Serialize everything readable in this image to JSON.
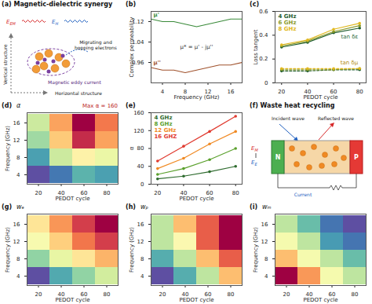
{
  "chart_data": [
    {
      "type": "diagram",
      "title": "(a) Magnetic-dielectric synergy",
      "fields": [
        {
          "base": "E",
          "sub": "EM"
        },
        {
          "base": "E",
          "sub": "H"
        }
      ],
      "texts": [
        "Migrating and hopping electrons",
        "Magnetic eddy current",
        "Vertical structure",
        "Horizontal structure"
      ]
    },
    {
      "type": "line",
      "title": "(b)",
      "xlabel": "Frequency (GHz)",
      "ylabel": "Complex permeability",
      "x": [
        2,
        4,
        6,
        8,
        10,
        12,
        14,
        16,
        18
      ],
      "xlim": [
        2,
        18
      ],
      "xticks": [
        4,
        8,
        12,
        16
      ],
      "ylim": [
        0.88,
        1.16
      ],
      "yticks": [
        0.96,
        1.04,
        1.12
      ],
      "series": [
        {
          "name": "μ'",
          "color": "#3a8a3a",
          "values": [
            1.13,
            1.12,
            1.12,
            1.11,
            1.1,
            1.11,
            1.12,
            1.13,
            1.13
          ]
        },
        {
          "name": "μ''",
          "color": "#a0522d",
          "values": [
            0.94,
            0.93,
            0.93,
            0.92,
            0.93,
            0.94,
            0.95,
            0.95,
            0.96
          ]
        }
      ],
      "annotations": [
        "μ* = μ' - jμ''"
      ]
    },
    {
      "type": "line",
      "title": "(c)",
      "xlabel": "PEDOT cycle",
      "ylabel": "Loss tangent",
      "x": [
        20,
        40,
        60,
        80
      ],
      "xlim": [
        15,
        85
      ],
      "xticks": [
        20,
        40,
        60,
        80
      ],
      "ylim": [
        0,
        0.6
      ],
      "yticks": [
        0,
        0.2,
        0.4,
        0.6
      ],
      "legend": "top-left",
      "marker": "circle",
      "series": [
        {
          "name": "4 GHz",
          "color": "#1f5c2e",
          "values": [
            0.3,
            0.34,
            0.42,
            0.46
          ],
          "values_mu": [
            0.1,
            0.1,
            0.11,
            0.11
          ]
        },
        {
          "name": "6 GHz",
          "color": "#8a9a2a",
          "values": [
            0.31,
            0.35,
            0.43,
            0.48
          ],
          "values_mu": [
            0.11,
            0.11,
            0.11,
            0.12
          ]
        },
        {
          "name": "8 GHz",
          "color": "#e0b820",
          "values": [
            0.32,
            0.36,
            0.45,
            0.5
          ],
          "values_mu": [
            0.12,
            0.12,
            0.12,
            0.12
          ]
        }
      ],
      "annotations": [
        "tan δε",
        "tan δμ"
      ]
    },
    {
      "type": "heatmap",
      "title": "(d)",
      "xlabel": "PEDOT cycle",
      "ylabel": "Frequency (GHz)",
      "zlabel": "α",
      "x": [
        20,
        40,
        60,
        80
      ],
      "y": [
        4,
        8,
        12,
        16
      ],
      "cells": [
        [
          20,
          30,
          45,
          40
        ],
        [
          40,
          70,
          95,
          80
        ],
        [
          60,
          110,
          150,
          120
        ],
        [
          70,
          120,
          160,
          130
        ]
      ],
      "annotations": [
        "Max α = 160"
      ]
    },
    {
      "type": "line",
      "title": "(e)",
      "xlabel": "PEDOT cycle",
      "ylabel": "α",
      "x": [
        20,
        40,
        60,
        80
      ],
      "xlim": [
        15,
        85
      ],
      "xticks": [
        20,
        40,
        60,
        80
      ],
      "ylim": [
        0,
        160
      ],
      "yticks": [
        0,
        40,
        80,
        120,
        160
      ],
      "legend": "top-left",
      "marker": "circle",
      "series": [
        {
          "name": "4 GHz",
          "color": "#2e6b2e",
          "values": [
            12,
            18,
            28,
            40
          ]
        },
        {
          "name": "8 GHz",
          "color": "#5aa02c",
          "values": [
            22,
            35,
            55,
            80
          ]
        },
        {
          "name": "12 GHz",
          "color": "#f08a24",
          "values": [
            35,
            58,
            90,
            118
          ]
        },
        {
          "name": "16 GHZ",
          "color": "#e03a2f",
          "values": [
            52,
            85,
            118,
            152
          ]
        }
      ]
    },
    {
      "type": "diagram",
      "title": "(f) Waste heat recycling",
      "fields": [
        {
          "base": "E",
          "sub": "M"
        },
        {
          "base": "E",
          "sub": "E"
        }
      ],
      "texts": [
        "Incident wave",
        "Reflected wave",
        "Current"
      ],
      "poles": [
        "N",
        "P"
      ]
    },
    {
      "type": "heatmap",
      "title": "(g)",
      "xlabel": "PEDOT cycle",
      "ylabel": "Frequency (GHz)",
      "zlabel": "wₑ",
      "x": [
        20,
        40,
        60,
        80
      ],
      "y": [
        4,
        8,
        12,
        16
      ],
      "cells": [
        [
          0.25,
          0.28,
          0.3,
          0.32
        ],
        [
          0.3,
          0.33,
          0.36,
          0.38
        ],
        [
          0.34,
          0.37,
          0.4,
          0.42
        ],
        [
          0.36,
          0.39,
          0.42,
          0.44
        ]
      ]
    },
    {
      "type": "heatmap",
      "title": "(h)",
      "xlabel": "PEDOT cycle",
      "ylabel": "Frequency (GHz)",
      "zlabel": "wₚ",
      "x": [
        20,
        40,
        60,
        80
      ],
      "y": [
        4,
        8,
        12,
        16
      ],
      "cells": [
        [
          0.8,
          0.81,
          0.82,
          0.84
        ],
        [
          0.81,
          0.82,
          0.84,
          0.85
        ],
        [
          0.82,
          0.83,
          0.85,
          0.86
        ],
        [
          0.82,
          0.84,
          0.85,
          0.86
        ]
      ]
    },
    {
      "type": "heatmap",
      "title": "(i)",
      "xlabel": "PEDOT cycle",
      "ylabel": "Frequency (GHz)",
      "zlabel": "wₘ",
      "x": [
        20,
        40,
        60,
        80
      ],
      "y": [
        4,
        8,
        12,
        16
      ],
      "cells": [
        [
          0.5,
          0.46,
          0.42,
          0.4
        ],
        [
          0.45,
          0.42,
          0.4,
          0.38
        ],
        [
          0.42,
          0.4,
          0.37,
          0.36
        ],
        [
          0.4,
          0.38,
          0.36,
          0.35
        ]
      ]
    }
  ]
}
